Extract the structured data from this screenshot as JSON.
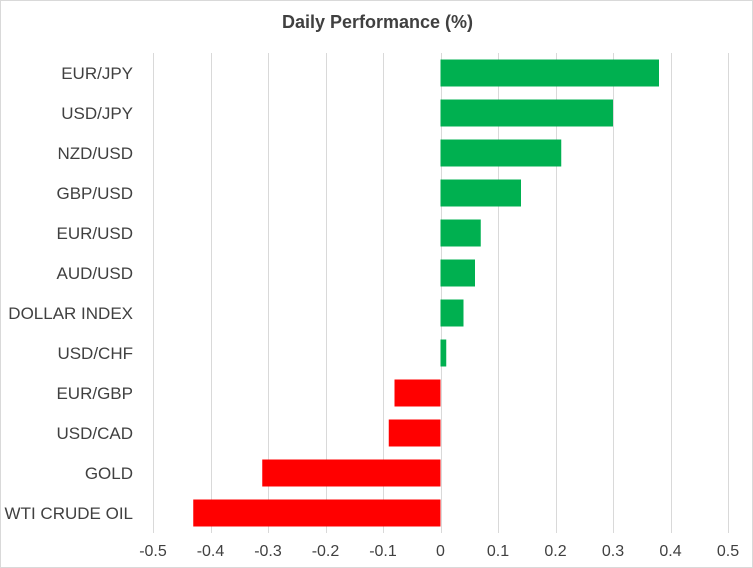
{
  "chart_data": {
    "type": "bar",
    "orientation": "horizontal",
    "title": "Daily Performance (%)",
    "categories": [
      "EUR/JPY",
      "USD/JPY",
      "NZD/USD",
      "GBP/USD",
      "EUR/USD",
      "AUD/USD",
      "DOLLAR INDEX",
      "USD/CHF",
      "EUR/GBP",
      "USD/CAD",
      "GOLD",
      "WTI CRUDE OIL"
    ],
    "values": [
      0.38,
      0.3,
      0.21,
      0.14,
      0.07,
      0.06,
      0.04,
      0.01,
      -0.08,
      -0.09,
      -0.31,
      -0.43
    ],
    "xlim": [
      -0.5,
      0.5
    ],
    "xticks": [
      -0.5,
      -0.4,
      -0.3,
      -0.2,
      -0.1,
      0,
      0.1,
      0.2,
      0.3,
      0.4,
      0.5
    ],
    "xtick_labels": [
      "-0.5",
      "-0.4",
      "-0.3",
      "-0.2",
      "-0.1",
      "0",
      "0.1",
      "0.2",
      "0.3",
      "0.4",
      "0.5"
    ],
    "grid": true,
    "legend": "none",
    "colors": {
      "positive": "#00b050",
      "negative": "#ff0000"
    }
  }
}
